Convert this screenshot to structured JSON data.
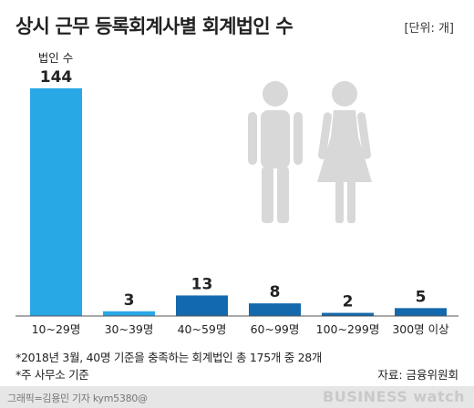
{
  "title": "상시 근무 등록회계사별 회계법인 수",
  "unit_label": "[단위: 개]",
  "chart_data": {
    "type": "bar",
    "categories": [
      "10~29명",
      "30~39명",
      "40~59명",
      "60~99명",
      "100~299명",
      "300명 이상"
    ],
    "values": [
      144,
      3,
      13,
      8,
      2,
      5
    ],
    "value_labels": [
      "144",
      "3",
      "13",
      "8",
      "2",
      "5"
    ],
    "first_bar_caption": "법인 수",
    "ylim": [
      0,
      144
    ],
    "grid": false,
    "colors": {
      "highlight": "#29a8e6",
      "bars": [
        "#29a8e6",
        "#29a8e6",
        "#1369ad",
        "#1369ad",
        "#1369ad",
        "#1369ad"
      ],
      "axis": "#555555",
      "figure": "#d8d8d8"
    }
  },
  "notes": [
    "*2018년 3월, 40명 기준을 충족하는 회계법인 총 175개 중 28개",
    "*주 사무소 기준"
  ],
  "source": "자료: 금융위원회",
  "footer": {
    "credit": "그래픽=김용민 기자 kym5380@",
    "brand": "BUSINESS watch"
  },
  "decoration_icons": [
    "man-figure-icon",
    "woman-figure-icon"
  ]
}
